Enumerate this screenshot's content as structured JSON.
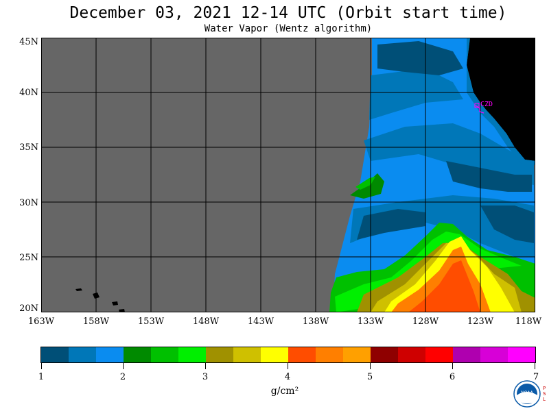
{
  "title": "December 03, 2021  12-14 UTC  (Orbit start time)",
  "subtitle": "Water Vapor (Wentz algorithm)",
  "lat_labels": [
    "45N",
    "40N",
    "35N",
    "30N",
    "25N",
    "20N"
  ],
  "lon_labels": [
    "163W",
    "158W",
    "153W",
    "148W",
    "143W",
    "138W",
    "133W",
    "128W",
    "123W",
    "118W"
  ],
  "station_label": "CZD",
  "colorbar": {
    "colors": [
      "#004f77",
      "#0077b8",
      "#0a8cf0",
      "#008a00",
      "#00c000",
      "#00ef00",
      "#a09100",
      "#cfc000",
      "#ffff00",
      "#ff4d00",
      "#ff7f00",
      "#ffa000",
      "#8f0000",
      "#cf0000",
      "#ff0000",
      "#af00af",
      "#d700d7",
      "#ff00ff"
    ],
    "tick_labels": [
      "1",
      "2",
      "3",
      "4",
      "5",
      "6",
      "7"
    ]
  },
  "units": "g/cm²",
  "logo_text": "NOAA",
  "logo_side_text": "PSL"
}
